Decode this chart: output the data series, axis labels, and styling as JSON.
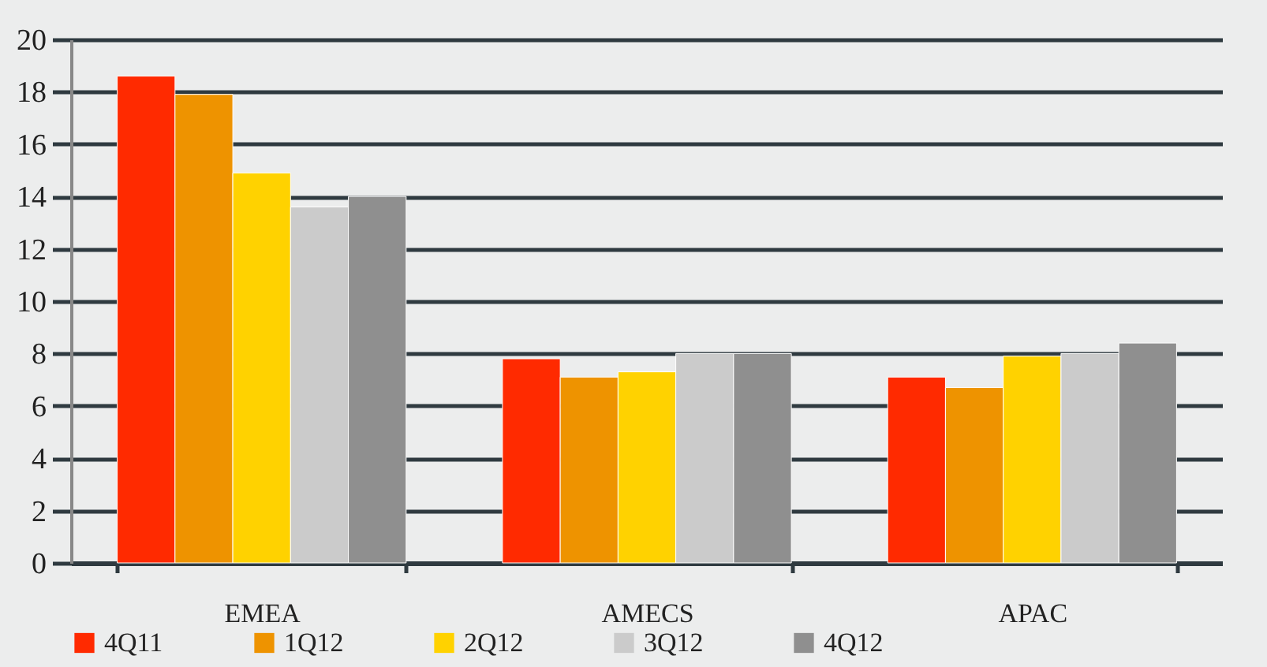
{
  "chart_data": {
    "type": "bar",
    "categories": [
      "EMEA",
      "AMECS",
      "APAC"
    ],
    "series": [
      {
        "name": "4Q11",
        "color": "#ff2a00",
        "values": [
          18.6,
          7.8,
          7.1
        ]
      },
      {
        "name": "1Q12",
        "color": "#ee9300",
        "values": [
          17.9,
          7.1,
          6.7
        ]
      },
      {
        "name": "2Q12",
        "color": "#ffd200",
        "values": [
          14.9,
          7.3,
          7.9
        ]
      },
      {
        "name": "3Q12",
        "color": "#cbcbcb",
        "values": [
          13.6,
          8.0,
          8.0
        ]
      },
      {
        "name": "4Q12",
        "color": "#8f8f8f",
        "values": [
          14.0,
          8.0,
          8.4
        ]
      }
    ],
    "ylim": [
      0,
      20
    ],
    "yticks": [
      0,
      2,
      4,
      6,
      8,
      10,
      12,
      14,
      16,
      18,
      20
    ],
    "grid": "y",
    "legend": "bottom"
  }
}
